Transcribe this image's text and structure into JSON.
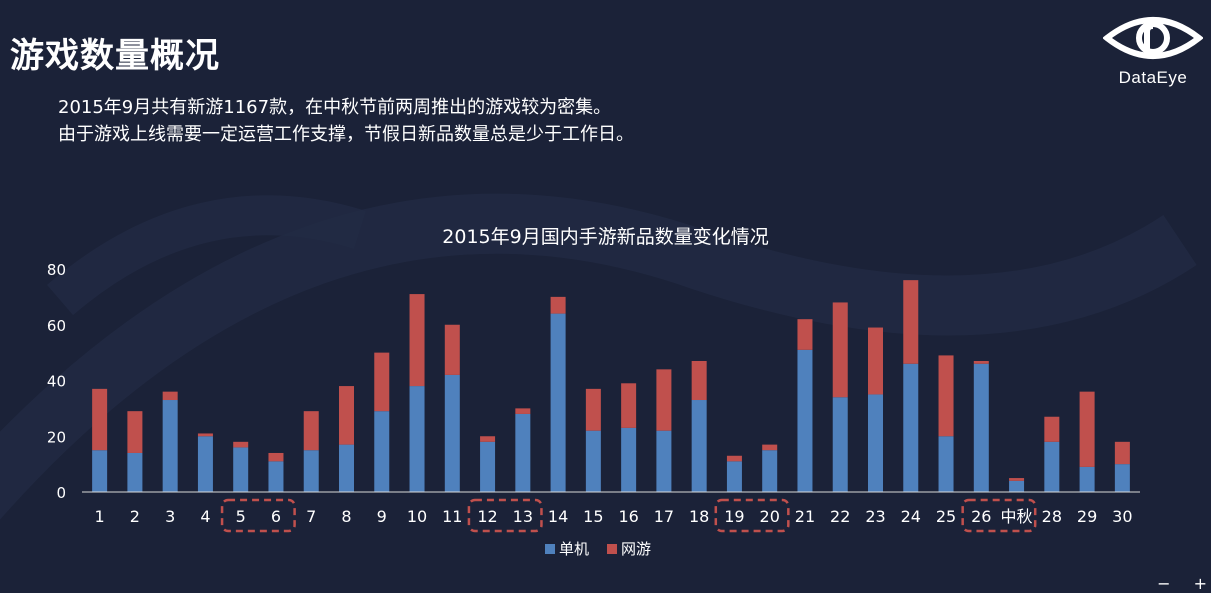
{
  "header": {
    "title": "游戏数量概况",
    "intro_lines": [
      "2015年9月共有新游1167款，在中秋节前两周推出的游戏较为密集。",
      "由于游戏上线需要一定运营工作支撑，节假日新品数量总是少于工作日。"
    ]
  },
  "logo": {
    "text": "DataEye",
    "icon": "eye-logo-icon"
  },
  "colors": {
    "background": "#1b2238",
    "single": "#4f81bd",
    "online": "#c0504d",
    "highlight": "#c0504d"
  },
  "chart_data": {
    "type": "bar",
    "stacked": true,
    "title": "2015年9月国内手游新品数量变化情况",
    "categories": [
      "1",
      "2",
      "3",
      "4",
      "5",
      "6",
      "7",
      "8",
      "9",
      "10",
      "11",
      "12",
      "13",
      "14",
      "15",
      "16",
      "17",
      "18",
      "19",
      "20",
      "21",
      "22",
      "23",
      "24",
      "25",
      "26",
      "中秋",
      "28",
      "29",
      "30"
    ],
    "series": [
      {
        "name": "单机",
        "color": "#4f81bd",
        "values": [
          15,
          14,
          33,
          20,
          16,
          11,
          15,
          17,
          29,
          38,
          42,
          18,
          28,
          64,
          22,
          23,
          22,
          33,
          11,
          15,
          51,
          34,
          35,
          46,
          20,
          46,
          4,
          18,
          9,
          10
        ]
      },
      {
        "name": "网游",
        "color": "#c0504d",
        "values": [
          22,
          15,
          3,
          1,
          2,
          3,
          14,
          21,
          21,
          33,
          18,
          2,
          2,
          6,
          15,
          16,
          22,
          14,
          2,
          2,
          11,
          34,
          24,
          30,
          29,
          1,
          1,
          9,
          27,
          8
        ]
      }
    ],
    "ylim": [
      0,
      80
    ],
    "yticks": [
      0,
      20,
      40,
      60,
      80
    ],
    "grid": false,
    "legend": "bottom",
    "highlight_groups": [
      [
        "5",
        "6"
      ],
      [
        "12",
        "13"
      ],
      [
        "19",
        "20"
      ],
      [
        "26",
        "中秋"
      ]
    ]
  }
}
